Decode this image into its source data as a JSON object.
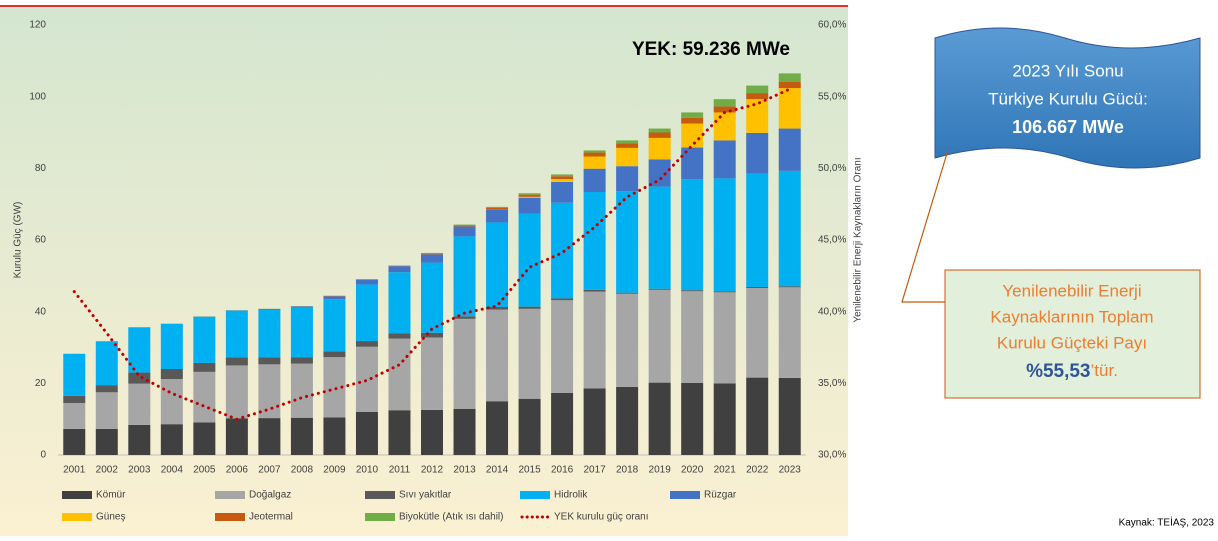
{
  "chart_data": {
    "type": "stacked-bar-line",
    "annotation": "YEK: 59.236 MWe",
    "y_label": "Kurulu Güç (GW)",
    "y2_label": "Yenilenebilir Enerji Kaynakların Oranı",
    "categories": [
      "2001",
      "2002",
      "2003",
      "2004",
      "2005",
      "2006",
      "2007",
      "2008",
      "2009",
      "2010",
      "2011",
      "2012",
      "2013",
      "2014",
      "2015",
      "2016",
      "2017",
      "2018",
      "2019",
      "2020",
      "2021",
      "2022",
      "2023"
    ],
    "series": [
      {
        "name": "Kömür",
        "color": "#404040",
        "values": [
          7.3,
          7.3,
          8.4,
          8.6,
          9.1,
          10.2,
          10.3,
          10.4,
          10.5,
          12.0,
          12.5,
          12.6,
          12.9,
          15.0,
          15.7,
          17.3,
          18.6,
          19.0,
          20.2,
          20.1,
          20.0,
          21.6,
          21.5
        ]
      },
      {
        "name": "Doğalgaz",
        "color": "#a6a6a6",
        "values": [
          7.2,
          10.2,
          11.5,
          12.6,
          14.1,
          14.8,
          15.0,
          15.1,
          16.8,
          18.2,
          20.0,
          20.2,
          25.1,
          25.6,
          25.1,
          25.9,
          27.0,
          26.0,
          25.9,
          25.6,
          25.4,
          25.0,
          25.3
        ]
      },
      {
        "name": "Sıvı yakıtlar",
        "color": "#595959",
        "values": [
          2.0,
          2.0,
          3.1,
          2.8,
          2.5,
          2.2,
          1.9,
          1.8,
          1.6,
          1.6,
          1.4,
          1.3,
          0.7,
          0.7,
          0.6,
          0.5,
          0.5,
          0.3,
          0.3,
          0.3,
          0.3,
          0.3,
          0.3
        ]
      },
      {
        "name": "Hidrolik",
        "color": "#00b0f0",
        "values": [
          11.7,
          12.2,
          12.6,
          12.6,
          12.9,
          13.1,
          13.4,
          13.8,
          14.6,
          15.8,
          17.1,
          19.6,
          22.3,
          23.6,
          25.9,
          26.7,
          27.3,
          28.3,
          28.5,
          31.0,
          31.5,
          31.6,
          32.2
        ]
      },
      {
        "name": "Rüzgar",
        "color": "#4472c4",
        "values": [
          0.02,
          0.02,
          0.02,
          0.02,
          0.02,
          0.06,
          0.15,
          0.36,
          0.8,
          1.3,
          1.7,
          2.3,
          2.8,
          3.6,
          4.5,
          5.8,
          6.5,
          7.0,
          7.6,
          8.8,
          10.6,
          11.4,
          11.8
        ]
      },
      {
        "name": "Güneş",
        "color": "#ffc000",
        "values": [
          0,
          0,
          0,
          0,
          0,
          0,
          0,
          0,
          0,
          0,
          0,
          0,
          0,
          0.04,
          0.25,
          0.8,
          3.4,
          5.1,
          6.0,
          6.7,
          7.8,
          9.4,
          11.3
        ]
      },
      {
        "name": "Jeotermal",
        "color": "#c55a11",
        "values": [
          0.02,
          0.02,
          0.02,
          0.02,
          0.02,
          0.02,
          0.02,
          0.03,
          0.08,
          0.1,
          0.1,
          0.2,
          0.3,
          0.4,
          0.6,
          0.8,
          1.1,
          1.3,
          1.5,
          1.6,
          1.7,
          1.7,
          1.7
        ]
      },
      {
        "name": "Biyokütle (Atık ısı dahil)",
        "color": "#70ad47",
        "values": [
          0.02,
          0.03,
          0.03,
          0.03,
          0.04,
          0.04,
          0.04,
          0.05,
          0.08,
          0.1,
          0.1,
          0.2,
          0.2,
          0.3,
          0.4,
          0.5,
          0.6,
          0.8,
          1.1,
          1.5,
          2.0,
          2.1,
          2.4
        ]
      },
      {
        "name": "YEK kurulu güç oranı",
        "color": "#c00000",
        "axis": "y2",
        "line": true,
        "values": [
          41.4,
          38.5,
          35.5,
          34.3,
          33.4,
          32.5,
          33.2,
          34.0,
          34.6,
          35.2,
          36.3,
          38.8,
          39.9,
          40.4,
          43.1,
          44.1,
          45.9,
          48.0,
          49.2,
          51.6,
          53.9,
          54.5,
          55.53
        ]
      }
    ],
    "ylim": [
      0,
      120
    ],
    "yticks": [
      0,
      20,
      40,
      60,
      80,
      100,
      120
    ],
    "y2lim": [
      30,
      60
    ],
    "y2ticks": [
      {
        "value": 30,
        "label": "30,0%"
      },
      {
        "value": 35,
        "label": "35,0%"
      },
      {
        "value": 40,
        "label": "40,0%"
      },
      {
        "value": 45,
        "label": "45,0%"
      },
      {
        "value": 50,
        "label": "50,0%"
      },
      {
        "value": 55,
        "label": "55,0%"
      },
      {
        "value": 60,
        "label": "60,0%"
      }
    ],
    "grid": false
  },
  "callouts": {
    "total": {
      "lines": [
        "2023 Yılı Sonu",
        "Türkiye Kurulu Gücü:"
      ],
      "value": "106.667 MWe"
    },
    "share": {
      "lines": [
        "Yenilenebilir Enerji",
        "Kaynaklarının Toplam",
        "Kurulu Güçteki Payı"
      ],
      "value": "%55,53",
      "suffix": "’tür."
    }
  },
  "source": "Kaynak: TEİAŞ, 2023"
}
